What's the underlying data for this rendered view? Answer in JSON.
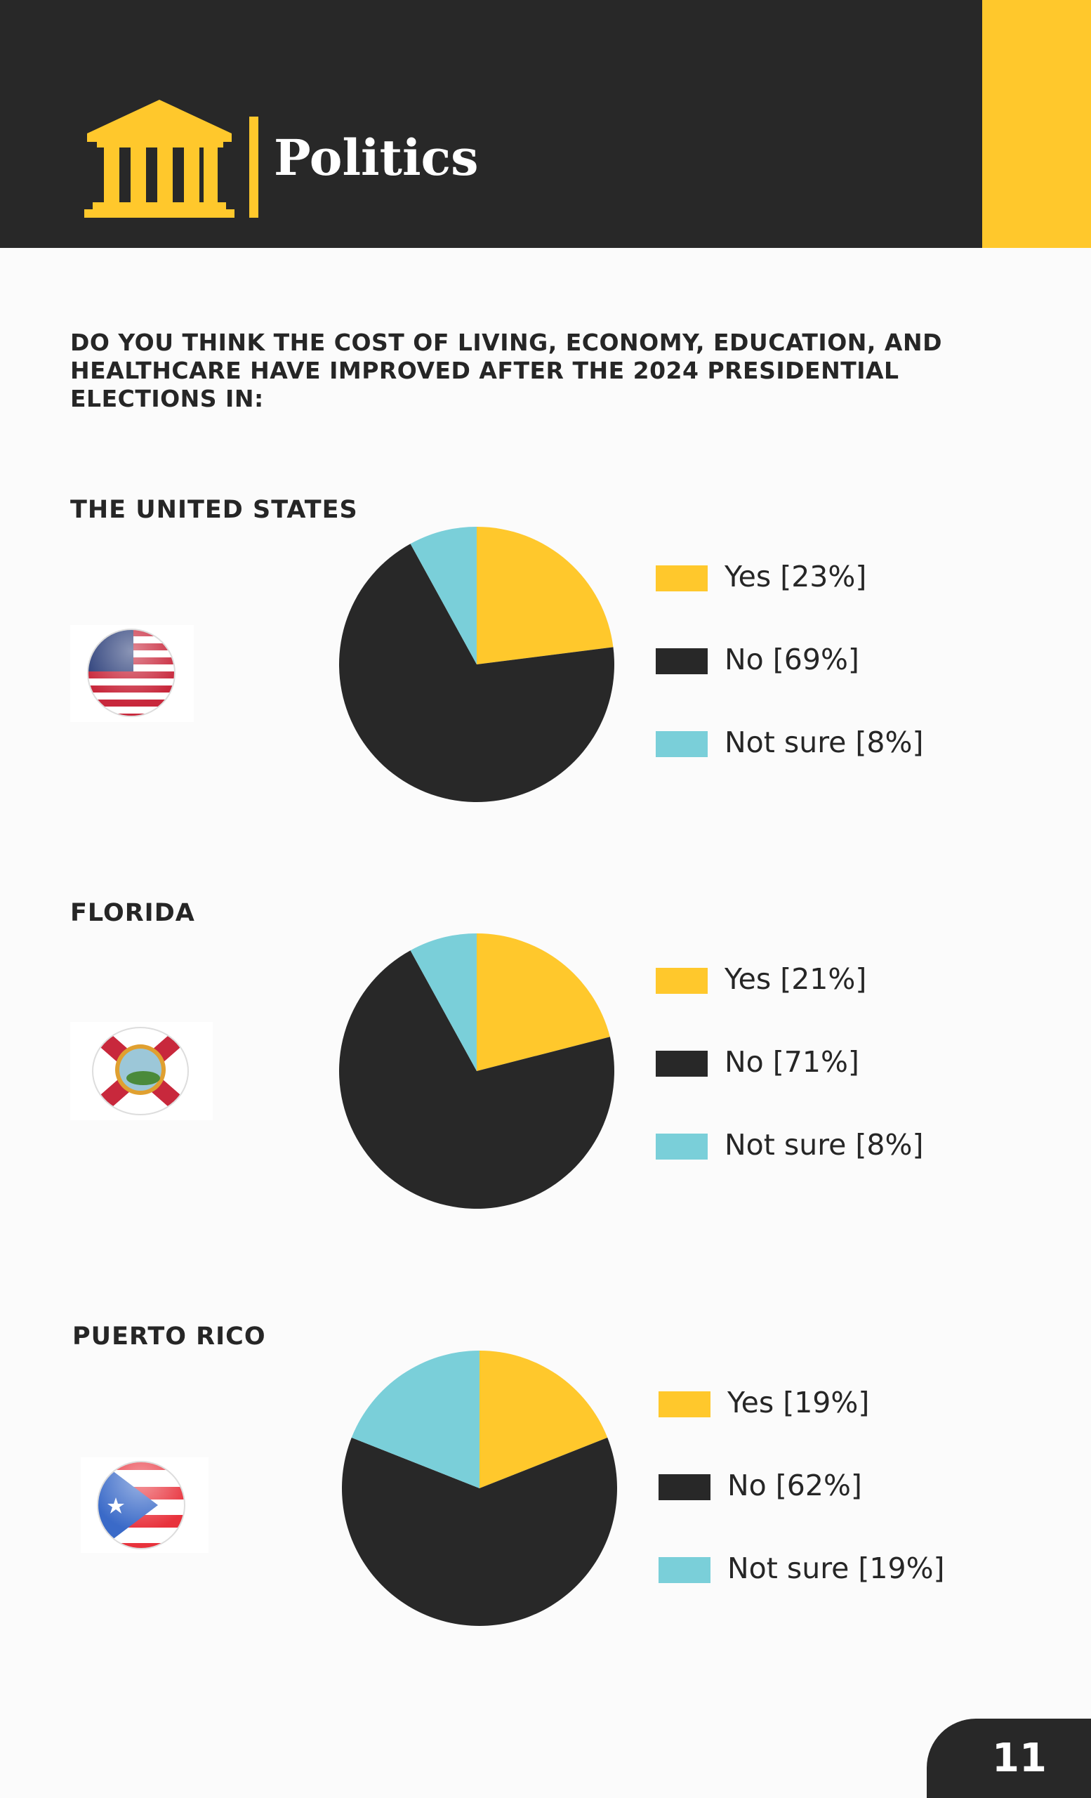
{
  "header": {
    "title": "Politics",
    "icon": "government-building-icon"
  },
  "question": "DO YOU THINK THE COST OF LIVING, ECONOMY, EDUCATION, AND HEALTHCARE HAVE IMPROVED AFTER THE 2024 PRESIDENTIAL ELECTIONS IN:",
  "colors": {
    "yes": "#FFC82C",
    "no": "#282828",
    "not_sure": "#7ACFD9"
  },
  "chart_data": [
    {
      "type": "pie",
      "title": "THE UNITED STATES",
      "flag": "us-flag-icon",
      "categories": [
        "Yes",
        "No",
        "Not sure"
      ],
      "values": [
        23,
        69,
        8
      ],
      "legend": [
        "Yes [23%]",
        "No [69%]",
        "Not sure [8%]"
      ],
      "legend_placement": "right"
    },
    {
      "type": "pie",
      "title": "FLORIDA",
      "flag": "florida-flag-icon",
      "categories": [
        "Yes",
        "No",
        "Not sure"
      ],
      "values": [
        21,
        71,
        8
      ],
      "legend": [
        "Yes [21%]",
        "No [71%]",
        "Not sure [8%]"
      ],
      "legend_placement": "right"
    },
    {
      "type": "pie",
      "title": "PUERTO RICO",
      "flag": "puerto-rico-flag-icon",
      "categories": [
        "Yes",
        "No",
        "Not sure"
      ],
      "values": [
        19,
        62,
        19
      ],
      "legend": [
        "Yes [19%]",
        "No [62%]",
        "Not sure [19%]"
      ],
      "legend_placement": "right"
    }
  ],
  "page_number": "11"
}
